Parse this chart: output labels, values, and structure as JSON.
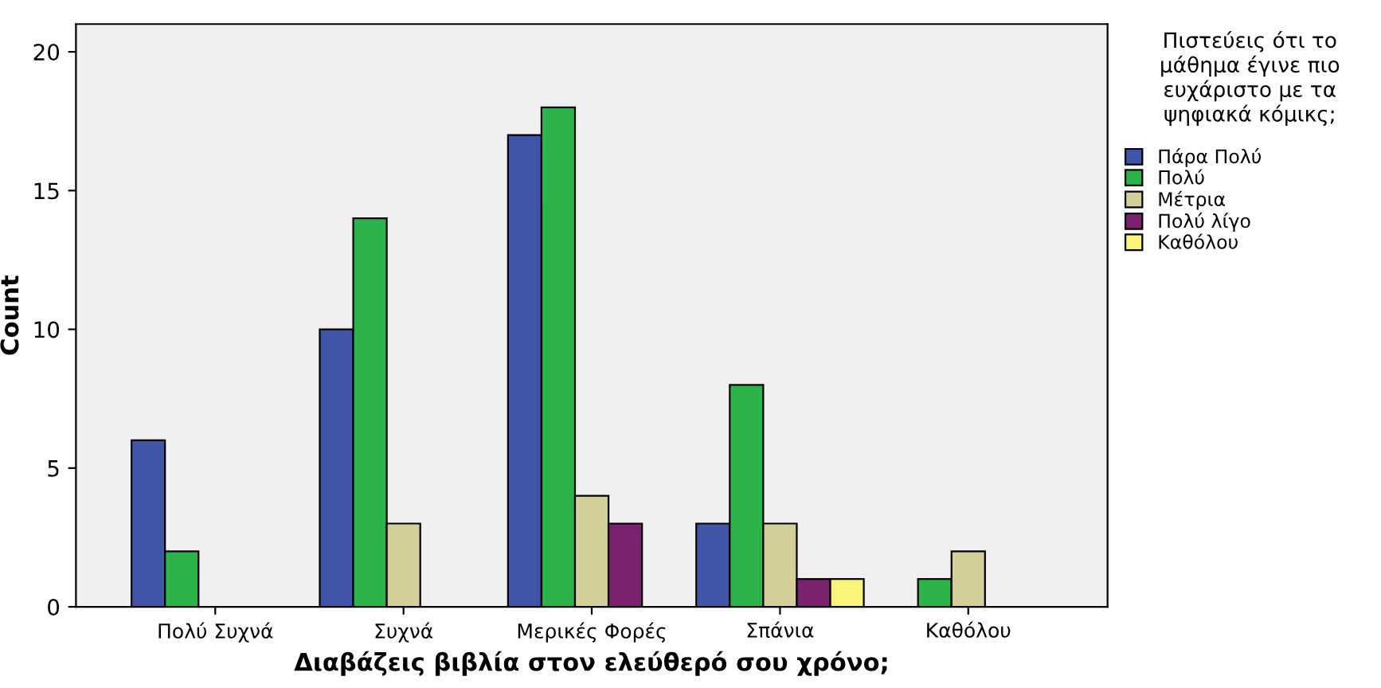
{
  "chart_data": {
    "type": "bar",
    "xlabel": "Διαβάζεις βιβλία στον ελεύθερό σου χρόνο;",
    "ylabel": "Count",
    "legend_title": "Πιστεύεις ότι το μάθημα έγινε πιο ευχάριστο με τα ψηφιακά κόμικς;",
    "categories": [
      "Πολύ Συχνά",
      "Συχνά",
      "Μερικές Φορές",
      "Σπάνια",
      "Καθόλου"
    ],
    "series": [
      {
        "name": "Πάρα Πολύ",
        "color": "#3e55a8",
        "values": [
          6,
          10,
          17,
          3,
          null
        ]
      },
      {
        "name": "Πολύ",
        "color": "#2bb44a",
        "values": [
          2,
          14,
          18,
          8,
          1
        ]
      },
      {
        "name": "Μέτρια",
        "color": "#d4cf9a",
        "values": [
          null,
          3,
          4,
          3,
          2
        ]
      },
      {
        "name": "Πολύ λίγο",
        "color": "#7a2170",
        "values": [
          null,
          null,
          3,
          1,
          null
        ]
      },
      {
        "name": "Καθόλου",
        "color": "#f8f47a",
        "values": [
          null,
          null,
          null,
          1,
          null
        ]
      }
    ],
    "ylim": [
      0,
      21
    ],
    "yticks": [
      0,
      5,
      10,
      15,
      20
    ],
    "grid": false,
    "legend": "right"
  }
}
